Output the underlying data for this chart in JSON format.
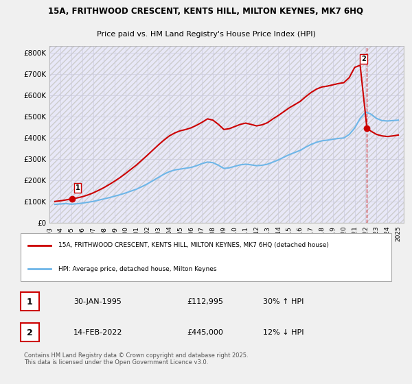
{
  "title_line1": "15A, FRITHWOOD CRESCENT, KENTS HILL, MILTON KEYNES, MK7 6HQ",
  "title_line2": "Price paid vs. HM Land Registry's House Price Index (HPI)",
  "xlabel": "",
  "ylabel": "",
  "ylim": [
    0,
    830000
  ],
  "xlim_start": 1993.0,
  "xlim_end": 2025.5,
  "yticks": [
    0,
    100000,
    200000,
    300000,
    400000,
    500000,
    600000,
    700000,
    800000
  ],
  "ytick_labels": [
    "£0",
    "£100K",
    "£200K",
    "£300K",
    "£400K",
    "£500K",
    "£600K",
    "£700K",
    "£800K"
  ],
  "xtick_years": [
    1993,
    1994,
    1995,
    1996,
    1997,
    1998,
    1999,
    2000,
    2001,
    2002,
    2003,
    2004,
    2005,
    2006,
    2007,
    2008,
    2009,
    2010,
    2011,
    2012,
    2013,
    2014,
    2015,
    2016,
    2017,
    2018,
    2019,
    2020,
    2021,
    2022,
    2023,
    2024,
    2025
  ],
  "hpi_color": "#6eb6e8",
  "price_color": "#cc0000",
  "bg_color": "#f0f0ff",
  "plot_bg": "#ffffff",
  "grid_color": "#ccccdd",
  "sale1_year": 1995.08,
  "sale1_price": 112995,
  "sale2_year": 2022.12,
  "sale2_price": 445000,
  "legend_line1": "15A, FRITHWOOD CRESCENT, KENTS HILL, MILTON KEYNES, MK7 6HQ (detached house)",
  "legend_line2": "HPI: Average price, detached house, Milton Keynes",
  "table_row1_num": "1",
  "table_row1_date": "30-JAN-1995",
  "table_row1_price": "£112,995",
  "table_row1_hpi": "30% ↑ HPI",
  "table_row2_num": "2",
  "table_row2_date": "14-FEB-2022",
  "table_row2_price": "£445,000",
  "table_row2_hpi": "12% ↓ HPI",
  "footer": "Contains HM Land Registry data © Crown copyright and database right 2025.\nThis data is licensed under the Open Government Licence v3.0.",
  "hpi_data_x": [
    1993.5,
    1994.0,
    1994.5,
    1995.0,
    1995.5,
    1996.0,
    1996.5,
    1997.0,
    1997.5,
    1998.0,
    1998.5,
    1999.0,
    1999.5,
    2000.0,
    2000.5,
    2001.0,
    2001.5,
    2002.0,
    2002.5,
    2003.0,
    2003.5,
    2004.0,
    2004.5,
    2005.0,
    2005.5,
    2006.0,
    2006.5,
    2007.0,
    2007.5,
    2008.0,
    2008.5,
    2009.0,
    2009.5,
    2010.0,
    2010.5,
    2011.0,
    2011.5,
    2012.0,
    2012.5,
    2013.0,
    2013.5,
    2014.0,
    2014.5,
    2015.0,
    2015.5,
    2016.0,
    2016.5,
    2017.0,
    2017.5,
    2018.0,
    2018.5,
    2019.0,
    2019.5,
    2020.0,
    2020.5,
    2021.0,
    2021.5,
    2022.0,
    2022.5,
    2023.0,
    2023.5,
    2024.0,
    2024.5,
    2025.0
  ],
  "hpi_data_y": [
    86000,
    88000,
    90000,
    87000,
    89000,
    92000,
    96000,
    100000,
    106000,
    112000,
    118000,
    125000,
    132000,
    140000,
    149000,
    158000,
    170000,
    183000,
    198000,
    213000,
    228000,
    240000,
    248000,
    252000,
    256000,
    260000,
    268000,
    278000,
    285000,
    282000,
    270000,
    255000,
    258000,
    265000,
    272000,
    275000,
    272000,
    268000,
    270000,
    275000,
    285000,
    295000,
    308000,
    320000,
    330000,
    340000,
    355000,
    368000,
    378000,
    385000,
    388000,
    392000,
    396000,
    398000,
    415000,
    445000,
    490000,
    520000,
    510000,
    490000,
    480000,
    478000,
    480000,
    482000
  ],
  "price_data_x": [
    1993.5,
    1994.0,
    1994.5,
    1995.08,
    1995.5,
    1996.0,
    1996.5,
    1997.0,
    1997.5,
    1998.0,
    1998.5,
    1999.0,
    1999.5,
    2000.0,
    2000.5,
    2001.0,
    2001.5,
    2002.0,
    2002.5,
    2003.0,
    2003.5,
    2004.0,
    2004.5,
    2005.0,
    2005.5,
    2006.0,
    2006.5,
    2007.0,
    2007.5,
    2008.0,
    2008.5,
    2009.0,
    2009.5,
    2010.0,
    2010.5,
    2011.0,
    2011.5,
    2012.0,
    2012.5,
    2013.0,
    2013.5,
    2014.0,
    2014.5,
    2015.0,
    2015.5,
    2016.0,
    2016.5,
    2017.0,
    2017.5,
    2018.0,
    2018.5,
    2019.0,
    2019.5,
    2020.0,
    2020.5,
    2021.0,
    2021.5,
    2022.12,
    2022.5,
    2023.0,
    2023.5,
    2024.0,
    2024.5,
    2025.0
  ],
  "price_data_y": [
    100000,
    103000,
    107000,
    112995,
    116000,
    122000,
    130000,
    140000,
    152000,
    165000,
    180000,
    196000,
    213000,
    232000,
    252000,
    272000,
    295000,
    318000,
    342000,
    366000,
    388000,
    408000,
    422000,
    432000,
    438000,
    446000,
    458000,
    472000,
    488000,
    482000,
    462000,
    438000,
    442000,
    452000,
    462000,
    468000,
    462000,
    455000,
    460000,
    470000,
    488000,
    504000,
    522000,
    540000,
    555000,
    570000,
    592000,
    612000,
    628000,
    638000,
    642000,
    648000,
    654000,
    658000,
    682000,
    730000,
    740000,
    445000,
    430000,
    415000,
    408000,
    405000,
    408000,
    412000
  ]
}
